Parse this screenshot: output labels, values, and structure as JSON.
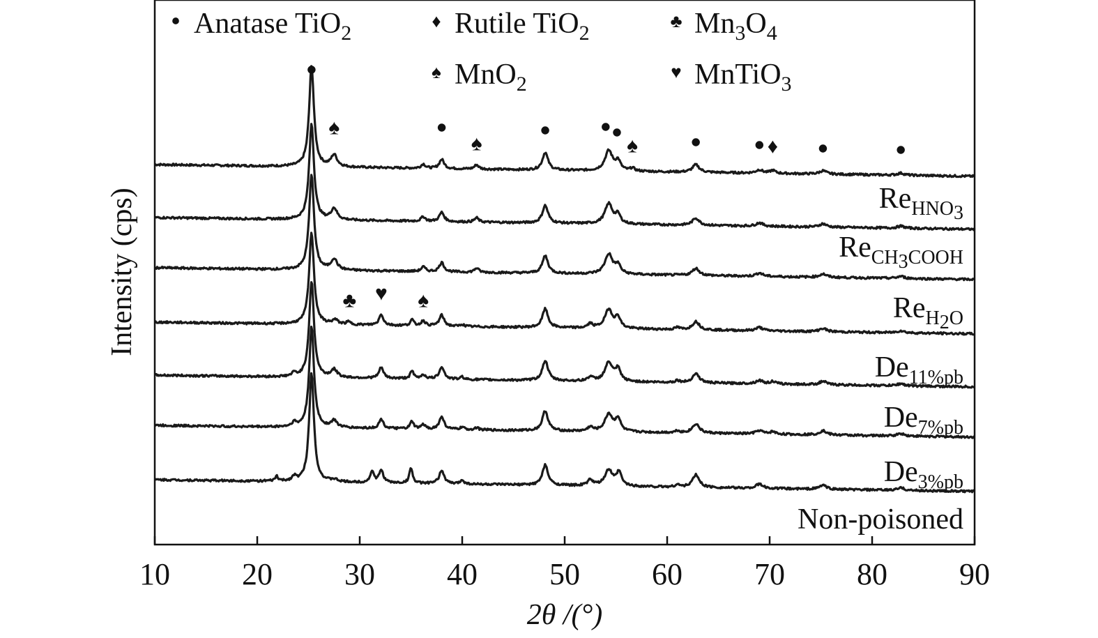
{
  "chart_data": {
    "type": "line",
    "xlabel": "2θ /(°)",
    "ylabel": "Intensity (cps)",
    "xlim": [
      10,
      90
    ],
    "xticks": [
      10,
      20,
      30,
      40,
      50,
      60,
      70,
      80,
      90
    ],
    "legend": {
      "placement": "top",
      "entries": [
        {
          "symbol": "circle",
          "name": "Anatase TiO",
          "sub": "2"
        },
        {
          "symbol": "diamond",
          "name": "Rutile TiO",
          "sub": "2"
        },
        {
          "symbol": "club",
          "name": "Mn",
          "sub": "3",
          "name2": "O",
          "sub2": "4"
        },
        {
          "symbol": "spade",
          "name": "MnO",
          "sub": "2"
        },
        {
          "symbol": "heart",
          "name": "MnTiO",
          "sub": "3"
        }
      ]
    },
    "series": [
      {
        "label": "Re",
        "sub": "HNO",
        "sub2": "3",
        "baseline_start": 0.9,
        "baseline_end": 0.62,
        "peaks": [
          [
            25.3,
            2.4,
            0.28
          ],
          [
            27.5,
            0.28,
            0.35
          ],
          [
            36.2,
            0.1,
            0.25
          ],
          [
            38.0,
            0.22,
            0.28
          ],
          [
            41.4,
            0.1,
            0.25
          ],
          [
            48.1,
            0.42,
            0.33
          ],
          [
            54.3,
            0.48,
            0.45
          ],
          [
            55.2,
            0.22,
            0.3
          ],
          [
            56.6,
            0.07,
            0.25
          ],
          [
            62.8,
            0.18,
            0.4
          ],
          [
            69.0,
            0.08,
            0.4
          ],
          [
            70.3,
            0.07,
            0.3
          ],
          [
            75.2,
            0.08,
            0.4
          ],
          [
            82.8,
            0.05,
            0.4
          ]
        ]
      },
      {
        "label": "Re",
        "sub": "CH",
        "sub2": "3",
        "sub3": "COOH",
        "baseline_start": 0.9,
        "baseline_end": 0.62,
        "peaks": [
          [
            25.3,
            2.3,
            0.28
          ],
          [
            27.5,
            0.27,
            0.35
          ],
          [
            36.2,
            0.11,
            0.25
          ],
          [
            38.0,
            0.22,
            0.28
          ],
          [
            41.4,
            0.1,
            0.25
          ],
          [
            48.1,
            0.42,
            0.33
          ],
          [
            54.3,
            0.48,
            0.45
          ],
          [
            55.2,
            0.2,
            0.3
          ],
          [
            62.8,
            0.17,
            0.4
          ],
          [
            69.0,
            0.08,
            0.4
          ],
          [
            75.2,
            0.08,
            0.4
          ],
          [
            82.8,
            0.05,
            0.4
          ]
        ]
      },
      {
        "label": "Re",
        "sub": "H",
        "sub2": "2",
        "sub3": "O",
        "baseline_start": 0.9,
        "baseline_end": 0.62,
        "peaks": [
          [
            25.3,
            2.3,
            0.28
          ],
          [
            27.5,
            0.26,
            0.35
          ],
          [
            36.2,
            0.11,
            0.25
          ],
          [
            38.0,
            0.22,
            0.28
          ],
          [
            41.4,
            0.1,
            0.25
          ],
          [
            48.1,
            0.42,
            0.33
          ],
          [
            54.3,
            0.48,
            0.45
          ],
          [
            55.2,
            0.2,
            0.3
          ],
          [
            62.8,
            0.17,
            0.4
          ],
          [
            69.0,
            0.08,
            0.4
          ],
          [
            75.2,
            0.08,
            0.4
          ],
          [
            82.8,
            0.05,
            0.4
          ]
        ]
      },
      {
        "label": "De",
        "sub": "11%pb",
        "baseline_start": 0.9,
        "baseline_end": 0.62,
        "peaks": [
          [
            25.3,
            2.2,
            0.28
          ],
          [
            27.6,
            0.1,
            0.35
          ],
          [
            28.9,
            0.06,
            0.25
          ],
          [
            32.1,
            0.26,
            0.25
          ],
          [
            35.1,
            0.14,
            0.2
          ],
          [
            36.2,
            0.12,
            0.25
          ],
          [
            38.0,
            0.26,
            0.28
          ],
          [
            40.0,
            0.05,
            0.2
          ],
          [
            48.1,
            0.45,
            0.33
          ],
          [
            52.5,
            0.1,
            0.3
          ],
          [
            54.3,
            0.45,
            0.45
          ],
          [
            55.2,
            0.25,
            0.3
          ],
          [
            61.0,
            0.05,
            0.25
          ],
          [
            62.8,
            0.2,
            0.4
          ],
          [
            69.0,
            0.08,
            0.4
          ],
          [
            75.2,
            0.08,
            0.4
          ],
          [
            82.8,
            0.05,
            0.4
          ]
        ]
      },
      {
        "label": "De",
        "sub": "7%pb",
        "baseline_start": 0.9,
        "baseline_end": 0.62,
        "peaks": [
          [
            25.3,
            2.3,
            0.28
          ],
          [
            23.6,
            0.08,
            0.25
          ],
          [
            27.5,
            0.18,
            0.35
          ],
          [
            32.1,
            0.26,
            0.25
          ],
          [
            35.1,
            0.18,
            0.2
          ],
          [
            36.2,
            0.1,
            0.25
          ],
          [
            38.0,
            0.3,
            0.28
          ],
          [
            40.0,
            0.06,
            0.2
          ],
          [
            48.1,
            0.48,
            0.33
          ],
          [
            52.5,
            0.1,
            0.3
          ],
          [
            54.3,
            0.45,
            0.45
          ],
          [
            55.2,
            0.28,
            0.3
          ],
          [
            61.0,
            0.05,
            0.25
          ],
          [
            62.8,
            0.22,
            0.4
          ],
          [
            69.0,
            0.08,
            0.4
          ],
          [
            70.3,
            0.06,
            0.3
          ],
          [
            75.2,
            0.08,
            0.4
          ],
          [
            82.8,
            0.05,
            0.4
          ]
        ]
      },
      {
        "label": "De",
        "sub": "3%pb",
        "baseline_start": 0.9,
        "baseline_end": 0.62,
        "peaks": [
          [
            25.3,
            2.4,
            0.28
          ],
          [
            23.6,
            0.1,
            0.25
          ],
          [
            27.5,
            0.16,
            0.35
          ],
          [
            32.1,
            0.22,
            0.25
          ],
          [
            35.1,
            0.18,
            0.2
          ],
          [
            36.2,
            0.1,
            0.25
          ],
          [
            38.0,
            0.3,
            0.28
          ],
          [
            40.0,
            0.06,
            0.2
          ],
          [
            41.4,
            0.05,
            0.25
          ],
          [
            48.1,
            0.48,
            0.33
          ],
          [
            52.5,
            0.1,
            0.3
          ],
          [
            54.3,
            0.42,
            0.45
          ],
          [
            55.2,
            0.3,
            0.3
          ],
          [
            61.0,
            0.05,
            0.25
          ],
          [
            62.8,
            0.22,
            0.4
          ],
          [
            69.0,
            0.08,
            0.4
          ],
          [
            70.3,
            0.06,
            0.3
          ],
          [
            75.2,
            0.1,
            0.4
          ],
          [
            82.8,
            0.06,
            0.4
          ]
        ]
      },
      {
        "label": "Non-poisoned",
        "baseline_start": 0.9,
        "baseline_end": 0.62,
        "peaks": [
          [
            25.3,
            2.6,
            0.28
          ],
          [
            21.9,
            0.12,
            0.15
          ],
          [
            23.6,
            0.1,
            0.25
          ],
          [
            27.5,
            0.05,
            0.35
          ],
          [
            31.2,
            0.28,
            0.2
          ],
          [
            32.1,
            0.3,
            0.25
          ],
          [
            35.0,
            0.38,
            0.18
          ],
          [
            38.0,
            0.32,
            0.28
          ],
          [
            40.0,
            0.1,
            0.2
          ],
          [
            48.1,
            0.48,
            0.33
          ],
          [
            52.5,
            0.14,
            0.3
          ],
          [
            54.3,
            0.38,
            0.45
          ],
          [
            55.3,
            0.32,
            0.3
          ],
          [
            61.0,
            0.06,
            0.25
          ],
          [
            62.8,
            0.3,
            0.4
          ],
          [
            69.0,
            0.1,
            0.4
          ],
          [
            75.2,
            0.1,
            0.4
          ],
          [
            82.8,
            0.06,
            0.4
          ]
        ]
      }
    ],
    "annotations": [
      {
        "symbol": "circle",
        "x": 25.3
      },
      {
        "symbol": "spade",
        "x": 27.5
      },
      {
        "symbol": "circle",
        "x": 38.0
      },
      {
        "symbol": "spade",
        "x": 41.4
      },
      {
        "symbol": "circle",
        "x": 48.1
      },
      {
        "symbol": "circle",
        "x": 54.0
      },
      {
        "symbol": "circle",
        "x": 55.1
      },
      {
        "symbol": "spade",
        "x": 56.6
      },
      {
        "symbol": "circle",
        "x": 62.8
      },
      {
        "symbol": "circle",
        "x": 69.0
      },
      {
        "symbol": "diamond",
        "x": 70.3
      },
      {
        "symbol": "circle",
        "x": 75.2
      },
      {
        "symbol": "circle",
        "x": 82.8
      },
      {
        "symbol": "club",
        "x": 29.0
      },
      {
        "symbol": "heart",
        "x": 32.1
      },
      {
        "symbol": "spade",
        "x": 36.2
      }
    ]
  }
}
